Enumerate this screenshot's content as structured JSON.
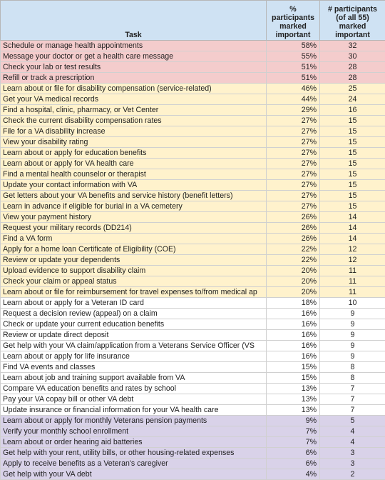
{
  "headers": {
    "task": "Task",
    "pct": "%\nparticipants\nmarked\nimportant",
    "count": "# participants\n(of all 55)\nmarked\nimportant"
  },
  "rows": [
    {
      "task": "Schedule or manage health appointments",
      "pct": "58%",
      "count": "32",
      "tier": "red"
    },
    {
      "task": "Message your doctor or get a health care message",
      "pct": "55%",
      "count": "30",
      "tier": "red"
    },
    {
      "task": "Check your lab or test results",
      "pct": "51%",
      "count": "28",
      "tier": "red"
    },
    {
      "task": "Refill or track a prescription",
      "pct": "51%",
      "count": "28",
      "tier": "red"
    },
    {
      "task": "Learn about or file for disability compensation (service-related)",
      "pct": "46%",
      "count": "25",
      "tier": "yellow"
    },
    {
      "task": "Get your VA medical records",
      "pct": "44%",
      "count": "24",
      "tier": "yellow"
    },
    {
      "task": "Find a hospital, clinic, pharmacy, or Vet Center",
      "pct": "29%",
      "count": "16",
      "tier": "yellow"
    },
    {
      "task": "Check the current disability compensation rates",
      "pct": "27%",
      "count": "15",
      "tier": "yellow"
    },
    {
      "task": "File for a VA disability increase",
      "pct": "27%",
      "count": "15",
      "tier": "yellow"
    },
    {
      "task": "View your disability rating",
      "pct": "27%",
      "count": "15",
      "tier": "yellow"
    },
    {
      "task": "Learn about or apply for education benefits",
      "pct": "27%",
      "count": "15",
      "tier": "yellow"
    },
    {
      "task": "Learn about or apply for VA health care",
      "pct": "27%",
      "count": "15",
      "tier": "yellow"
    },
    {
      "task": "Find a mental health counselor or therapist",
      "pct": "27%",
      "count": "15",
      "tier": "yellow"
    },
    {
      "task": "Update your contact information with VA",
      "pct": "27%",
      "count": "15",
      "tier": "yellow"
    },
    {
      "task": "Get letters about your VA benefits and service history (benefit letters)",
      "pct": "27%",
      "count": "15",
      "tier": "yellow"
    },
    {
      "task": "Learn in advance if eligible for burial in a VA cemetery",
      "pct": "27%",
      "count": "15",
      "tier": "yellow"
    },
    {
      "task": "View your payment history",
      "pct": "26%",
      "count": "14",
      "tier": "yellow"
    },
    {
      "task": "Request your military records (DD214)",
      "pct": "26%",
      "count": "14",
      "tier": "yellow"
    },
    {
      "task": "Find a VA form",
      "pct": "26%",
      "count": "14",
      "tier": "yellow"
    },
    {
      "task": "Apply for a home loan Certificate of Eligibility (COE)",
      "pct": "22%",
      "count": "12",
      "tier": "yellow"
    },
    {
      "task": "Review or update your dependents",
      "pct": "22%",
      "count": "12",
      "tier": "yellow"
    },
    {
      "task": "Upload evidence to support disability claim",
      "pct": "20%",
      "count": "11",
      "tier": "yellow"
    },
    {
      "task": "Check your claim or appeal status",
      "pct": "20%",
      "count": "11",
      "tier": "yellow"
    },
    {
      "task": "Learn about or file for reimbursement for travel expenses to/from medical ap",
      "pct": "20%",
      "count": "11",
      "tier": "yellow"
    },
    {
      "task": "Learn about or apply for a Veteran ID card",
      "pct": "18%",
      "count": "10",
      "tier": "white"
    },
    {
      "task": "Request a decision review (appeal) on a claim",
      "pct": "16%",
      "count": "9",
      "tier": "white"
    },
    {
      "task": "Check or update your current education benefits",
      "pct": "16%",
      "count": "9",
      "tier": "white"
    },
    {
      "task": "Review or update direct deposit",
      "pct": "16%",
      "count": "9",
      "tier": "white"
    },
    {
      "task": "Get help with your VA claim/application from a Veterans Service Officer (VS",
      "pct": "16%",
      "count": "9",
      "tier": "white"
    },
    {
      "task": "Learn about or apply for life insurance",
      "pct": "16%",
      "count": "9",
      "tier": "white"
    },
    {
      "task": "Find VA events and classes",
      "pct": "15%",
      "count": "8",
      "tier": "white"
    },
    {
      "task": "Learn about job and training support available from VA",
      "pct": "15%",
      "count": "8",
      "tier": "white"
    },
    {
      "task": "Compare VA education benefits and rates by school",
      "pct": "13%",
      "count": "7",
      "tier": "white"
    },
    {
      "task": "Pay your VA copay bill or other VA debt",
      "pct": "13%",
      "count": "7",
      "tier": "white"
    },
    {
      "task": "Update insurance or financial information for your VA health care",
      "pct": "13%",
      "count": "7",
      "tier": "white"
    },
    {
      "task": "Learn about or apply for monthly Veterans pension payments",
      "pct": "9%",
      "count": "5",
      "tier": "purple"
    },
    {
      "task": "Verify your monthly school enrollment",
      "pct": "7%",
      "count": "4",
      "tier": "purple"
    },
    {
      "task": "Learn about or order hearing aid batteries",
      "pct": "7%",
      "count": "4",
      "tier": "purple"
    },
    {
      "task": "Get help with your rent, utility bills, or other housing-related expenses",
      "pct": "6%",
      "count": "3",
      "tier": "purple"
    },
    {
      "task": "Apply to receive benefits as a Veteran's caregiver",
      "pct": "6%",
      "count": "3",
      "tier": "purple"
    },
    {
      "task": "Get help with your VA debt",
      "pct": "4%",
      "count": "2",
      "tier": "purple"
    }
  ],
  "colors": {
    "header": "#cfe2f3",
    "red": "#f4cccc",
    "yellow": "#fff2cc",
    "white": "#ffffff",
    "purple": "#d9d2e9"
  }
}
